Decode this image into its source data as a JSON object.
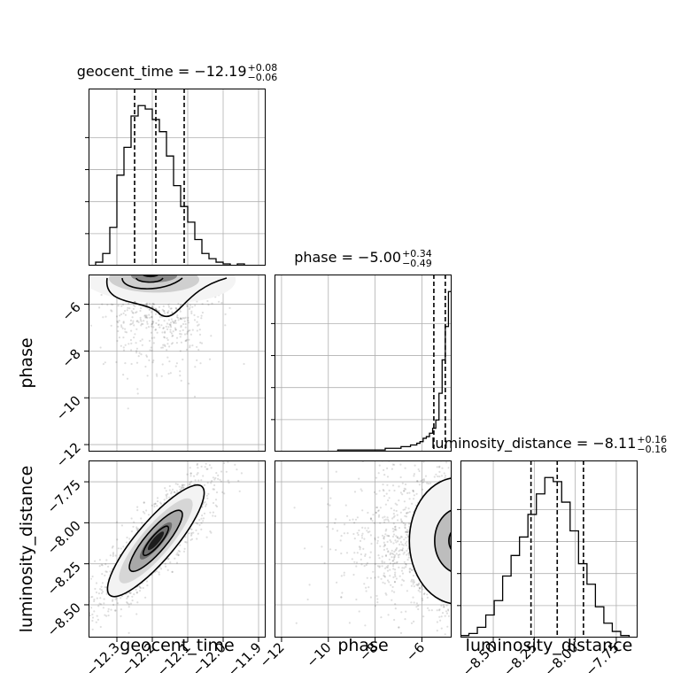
{
  "chart_data": {
    "type": "corner",
    "parameters": [
      "geocent_time",
      "phase",
      "luminosity_distance"
    ],
    "titles": [
      {
        "param": "geocent_time",
        "text": "geocent_time = −12.19",
        "sup": "+0.08",
        "sub": "−0.06"
      },
      {
        "param": "phase",
        "text": "phase = −5.00",
        "sup": "+0.34",
        "sub": "−0.49"
      },
      {
        "param": "luminosity_distance",
        "text": "luminosity_distance = −8.11",
        "sup": "+0.16",
        "sub": "−0.16"
      }
    ],
    "axis_ranges": {
      "geocent_time": [
        -12.38,
        -11.88
      ],
      "phase": [
        -12.3,
        -4.73
      ],
      "luminosity_distance": [
        -8.7,
        -7.62
      ]
    },
    "ticks": {
      "geocent_time": [
        -12.3,
        -12.2,
        -12.1,
        -12.0,
        -11.9
      ],
      "phase": [
        -12,
        -10,
        -8,
        -6
      ],
      "luminosity_distance": [
        -8.5,
        -8.25,
        -8.0,
        -7.75
      ]
    },
    "tick_labels": {
      "geocent_time": [
        "−12.3",
        "−12.2",
        "−12.1",
        "−12.0",
        "−11.9"
      ],
      "phase": [
        "−12",
        "−10",
        "−8",
        "−6"
      ],
      "luminosity_distance": [
        "−8.50",
        "−8.25",
        "−8.00",
        "−7.75"
      ]
    },
    "quantiles": {
      "geocent_time": [
        -12.25,
        -12.19,
        -12.11
      ],
      "phase": [
        -5.49,
        -5.0,
        -4.66
      ],
      "luminosity_distance": [
        -8.27,
        -8.11,
        -7.95
      ]
    },
    "histograms": {
      "geocent_time": {
        "range": [
          -12.38,
          -11.88
        ],
        "counts": [
          0,
          2,
          7,
          22,
          52,
          68,
          86,
          92,
          90,
          84,
          77,
          63,
          46,
          34,
          25,
          15,
          7,
          4,
          2,
          1,
          0,
          1,
          0,
          0,
          0
        ]
      },
      "phase": {
        "range": [
          -12.3,
          -4.73
        ],
        "counts": [
          0,
          0,
          0,
          0,
          0,
          0,
          0,
          0,
          0,
          0,
          0,
          0,
          0,
          0,
          0,
          0,
          0,
          0,
          0,
          0,
          1,
          1,
          1,
          1,
          1,
          1,
          1,
          1,
          1,
          1,
          1,
          1,
          1,
          1,
          1,
          2,
          2,
          2,
          2,
          2,
          3,
          3,
          3,
          4,
          4,
          5,
          6,
          8,
          9,
          11,
          14,
          19,
          35,
          55,
          75,
          96
        ]
      },
      "luminosity_distance": {
        "range": [
          -8.7,
          -7.62
        ],
        "counts": [
          1,
          2,
          5,
          11,
          18,
          30,
          40,
          49,
          60,
          70,
          78,
          76,
          66,
          52,
          36,
          26,
          15,
          7,
          3,
          1,
          0
        ]
      }
    },
    "grid": true,
    "legend": "none"
  }
}
